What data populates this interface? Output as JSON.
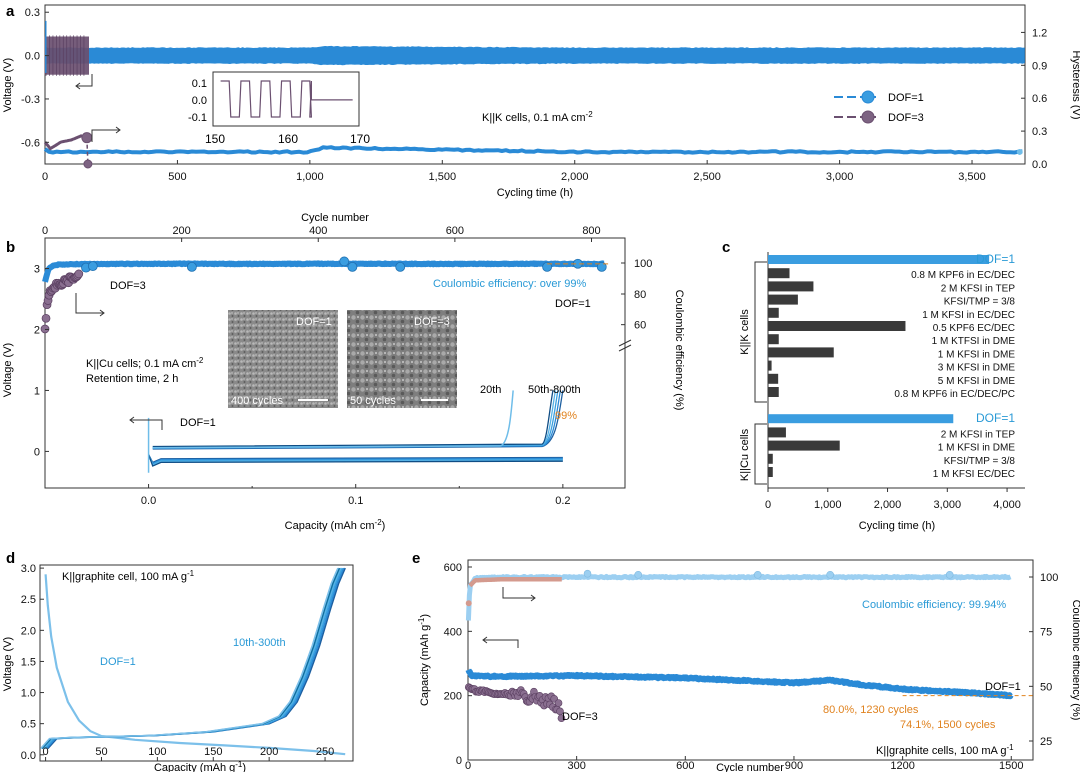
{
  "colors": {
    "dof1": "#2a8ad6",
    "dof1_light": "#6fbde9",
    "dof3": "#6b5070",
    "dof3_light": "#9a82a2",
    "ce_light": "#9ccff1",
    "orange": "#e0821e",
    "bar_dark": "#3a3a3a",
    "salmon": "#d49a8e"
  },
  "panels": {
    "a": {
      "letter": "a",
      "xlabel": "Cycling time (h)",
      "ylabel_left": "Voltage (V)",
      "ylabel_right": "Hysteresis (V)",
      "x_ticks": [
        "0",
        "500",
        "1,000",
        "1,500",
        "2,000",
        "2,500",
        "3,000",
        "3,500"
      ],
      "y_left_ticks": [
        "0.3",
        "0.0",
        "-0.3",
        "-0.6"
      ],
      "y_right_ticks": [
        "1.2",
        "0.9",
        "0.6",
        "0.3",
        "0.0"
      ],
      "inset_x_ticks": [
        "150",
        "160",
        "170"
      ],
      "inset_y_ticks": [
        "0.1",
        "0.0",
        "-0.1"
      ],
      "annotation": "K||K cells, 0.1 mA cm",
      "annotation_sup": "-2",
      "legend": [
        "DOF=1",
        "DOF=3"
      ]
    },
    "b": {
      "letter": "b",
      "top_xlabel": "Cycle number",
      "top_x_ticks": [
        "0",
        "200",
        "400",
        "600",
        "800"
      ],
      "xlabel": "Capacity (mAh cm",
      "xlabel_sup": "-2",
      "xlabel_end": ")",
      "x_ticks": [
        "0.0",
        "0.1",
        "0.2"
      ],
      "ylabel_left": "Voltage (V)",
      "y_left_ticks": [
        "3",
        "2",
        "1",
        "0"
      ],
      "ylabel_right": "Coulombic efficiency (%)",
      "y_right_ticks": [
        "100",
        "80",
        "60"
      ],
      "ce_note": "Coulombic efficiency: over 99%",
      "dof3_label": "DOF=3",
      "dof1_label_upper": "DOF=1",
      "dof1_label_lower": "DOF=1",
      "conditions_1": "K||Cu cells; 0.1 mA cm",
      "conditions_1_sup": "-2",
      "conditions_2": "Retention time, 2 h",
      "label_20th": "20th",
      "label_50th": "50th-800th",
      "label_99": "99%",
      "sem_left_label": "DOF=1",
      "sem_left_caption": "400 cycles",
      "sem_right_label": "DOF=3",
      "sem_right_caption": "50 cycles"
    },
    "c": {
      "letter": "c",
      "xlabel": "Cycling time (h)",
      "x_ticks": [
        "0",
        "1,000",
        "2,000",
        "3,000",
        "4,000"
      ],
      "group_kk": "K||K cells",
      "group_kcu": "K||Cu cells"
    },
    "d": {
      "letter": "d",
      "xlabel": "Capacity (mAh g",
      "xlabel_sup": "-1",
      "xlabel_end": ")",
      "x_ticks": [
        "0",
        "50",
        "100",
        "150",
        "200",
        "250"
      ],
      "ylabel": "Voltage (V)",
      "y_ticks": [
        "3.0",
        "2.5",
        "2.0",
        "1.5",
        "1.0",
        "0.5",
        "0.0"
      ],
      "title": "K||graphite cell, 100 mA g",
      "title_sup": "-1",
      "dof_label": "DOF=1",
      "cycles_label": "10th-300th"
    },
    "e": {
      "letter": "e",
      "xlabel": "Cycle number",
      "x_ticks": [
        "0",
        "300",
        "600",
        "900",
        "1200",
        "1500"
      ],
      "ylabel_left": "Capacity (mAh g",
      "ylabel_left_sup": "-1",
      "ylabel_left_end": ")",
      "y_left_ticks": [
        "600",
        "400",
        "200",
        "0"
      ],
      "ylabel_right": "Coulombic efficiency (%)",
      "y_right_ticks": [
        "100",
        "75",
        "50",
        "25"
      ],
      "ce_note": "Coulombic efficiency: 99.94%",
      "dof1_label": "DOF=1",
      "dof3_label": "DOF=3",
      "retention_1": "80.0%, 1230 cycles",
      "retention_2": "74.1%, 1500 cycles",
      "conditions": "K||graphite cells, 100 mA g",
      "conditions_sup": "-1"
    }
  },
  "chart_data": [
    {
      "panel": "a",
      "type": "line",
      "xlabel": "Cycling time (h)",
      "ylabel": "Voltage (V)",
      "xlim": [
        0,
        3700
      ],
      "ylim": [
        -0.75,
        0.35
      ],
      "y2lim": [
        0,
        1.45
      ],
      "series": [
        {
          "name": "DOF=1",
          "x": [
            0,
            10,
            100,
            1000,
            1050,
            2000,
            3000,
            3700
          ],
          "voltage_band": [
            0.06,
            0.05,
            0.05,
            0.05,
            0.06,
            0.05,
            0.05,
            0.05
          ],
          "hysteresis": [
            0.14,
            0.11,
            0.11,
            0.11,
            0.15,
            0.11,
            0.11,
            0.11
          ]
        },
        {
          "name": "DOF=3",
          "x": [
            0,
            20,
            60,
            100,
            140,
            165
          ],
          "voltage_band": [
            0.13,
            0.13,
            0.13,
            0.13,
            0.13,
            0.13
          ],
          "hysteresis": [
            0.2,
            0.14,
            0.2,
            0.22,
            0.26,
            0.0
          ]
        }
      ],
      "inset": {
        "xlim": [
          148,
          171
        ],
        "ylim": [
          -0.15,
          0.15
        ],
        "square_wave_period": 3.2,
        "amplitude": 0.1,
        "end_time": 163.5,
        "end_voltage": -0.005
      }
    },
    {
      "panel": "b",
      "type": "line",
      "xlabel": "Capacity (mAh cm-2)",
      "ylabel": "Voltage (V)",
      "top_xlabel": "Cycle number",
      "xlim": [
        -0.05,
        0.23
      ],
      "ylim": [
        -0.6,
        3.5
      ],
      "top_xlim": [
        0,
        830
      ],
      "ce_ylim": [
        50,
        103
      ],
      "ce_series": [
        {
          "name": "DOF=1",
          "x": [
            0,
            5,
            10,
            20,
            50,
            100,
            200,
            300,
            400,
            500,
            600,
            700,
            800,
            820
          ],
          "values": [
            88,
            96,
            98,
            99,
            99.3,
            99.4,
            99.5,
            99.4,
            99.5,
            99.5,
            99.4,
            99.5,
            99.4,
            99.5
          ]
        },
        {
          "name": "DOF=3",
          "x": [
            0,
            3,
            6,
            10,
            20,
            30,
            40,
            50
          ],
          "values": [
            56,
            72,
            80,
            84,
            86,
            88,
            90,
            93
          ]
        }
      ],
      "voltage_curves": [
        {
          "name": "20th",
          "charge_end_capacity": 0.176
        },
        {
          "name": "50th-800th",
          "charge_end_capacity": 0.2
        }
      ]
    },
    {
      "panel": "c",
      "type": "bar",
      "xlabel": "Cycling time (h)",
      "xlim": [
        0,
        4300
      ],
      "groups": [
        {
          "name": "K||K cells",
          "categories": [
            "DOF=1",
            "0.8 M KPF6 in EC/DEC",
            "2 M KFSI in TEP",
            "KFSI/TMP = 3/8",
            "1 M KFSI in EC/DEC",
            "0.5 KPF6 EC/DEC",
            "1 M KTFSI in DME",
            "1 M KFSI in DME",
            "3 M KFSI in DME",
            "5 M KFSI in DME",
            "0.8 M KPF6 in EC/DEC/PC"
          ],
          "values": [
            3700,
            360,
            760,
            500,
            180,
            2300,
            180,
            1100,
            60,
            170,
            180
          ]
        },
        {
          "name": "K||Cu cells",
          "categories": [
            "DOF=1",
            "2 M KFSI in TEP",
            "1 M KFSI in DME",
            "KFSI/TMP = 3/8",
            "1 M KFSI EC/DEC"
          ],
          "values": [
            3100,
            300,
            1200,
            80,
            80
          ]
        }
      ]
    },
    {
      "panel": "d",
      "type": "line",
      "xlabel": "Capacity (mAh g-1)",
      "ylabel": "Voltage (V)",
      "xlim": [
        -5,
        275
      ],
      "ylim": [
        -0.1,
        3.05
      ],
      "series": [
        {
          "name": "discharge (1st)",
          "x": [
            0,
            2,
            5,
            10,
            20,
            30,
            40,
            50,
            80,
            120,
            160,
            200,
            240,
            268
          ],
          "values": [
            2.9,
            2.4,
            1.9,
            1.4,
            0.85,
            0.55,
            0.38,
            0.3,
            0.24,
            0.19,
            0.15,
            0.11,
            0.06,
            0.01
          ]
        },
        {
          "name": "charge (10th-300th)",
          "x": [
            2,
            10,
            30,
            60,
            100,
            150,
            200,
            215,
            225,
            235,
            245,
            255,
            262,
            268
          ],
          "values": [
            0.1,
            0.26,
            0.28,
            0.29,
            0.31,
            0.37,
            0.5,
            0.62,
            0.85,
            1.25,
            1.75,
            2.35,
            2.75,
            3.0
          ]
        }
      ]
    },
    {
      "panel": "e",
      "type": "scatter",
      "xlabel": "Cycle number",
      "ylabel": "Capacity (mAh g-1)",
      "xlim": [
        0,
        1560
      ],
      "ylim": [
        0,
        600
      ],
      "y2lim": [
        15,
        104
      ],
      "series": [
        {
          "name": "DOF=1 capacity",
          "x": [
            1,
            10,
            50,
            100,
            300,
            600,
            900,
            1000,
            1100,
            1230,
            1300,
            1400,
            1500
          ],
          "values": [
            280,
            262,
            260,
            260,
            262,
            255,
            240,
            248,
            232,
            218,
            214,
            208,
            200
          ]
        },
        {
          "name": "DOF=3 capacity",
          "x": [
            1,
            10,
            50,
            100,
            150,
            200,
            230,
            250,
            260
          ],
          "values": [
            225,
            218,
            212,
            205,
            198,
            190,
            180,
            170,
            125
          ]
        },
        {
          "name": "DOF=1 CE",
          "x": [
            1,
            5,
            20,
            100,
            300,
            600,
            900,
            1200,
            1500
          ],
          "values": [
            80,
            96,
            99.5,
            99.9,
            99.94,
            99.94,
            99.94,
            99.94,
            99.94
          ]
        },
        {
          "name": "DOF=3 CE",
          "x": [
            1,
            5,
            20,
            100,
            200,
            260
          ],
          "values": [
            88,
            96,
            98.5,
            99,
            99,
            99
          ]
        }
      ],
      "reference_line": 200
    }
  ]
}
